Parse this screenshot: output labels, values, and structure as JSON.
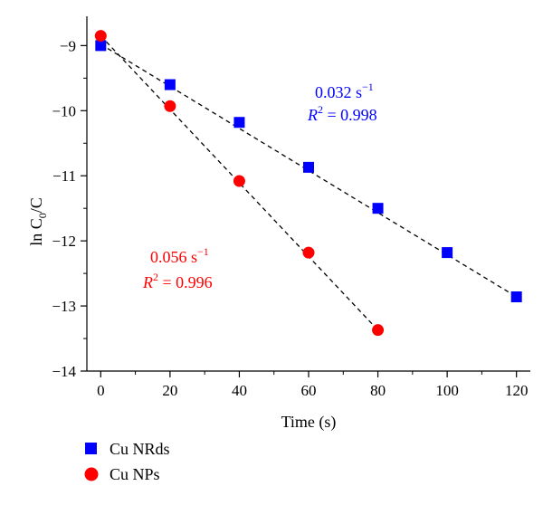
{
  "chart_data": {
    "type": "scatter",
    "xlabel": "Time (s)",
    "ylabel_parts": {
      "base": "ln C",
      "subscript": "0",
      "suffix": "/C"
    },
    "xlim": [
      -4,
      124
    ],
    "ylim": [
      -14,
      -8.55
    ],
    "xticks": [
      0,
      20,
      40,
      60,
      80,
      100,
      120
    ],
    "yticks": [
      -9,
      -10,
      -11,
      -12,
      -13,
      -14
    ],
    "grid": false,
    "legend_position": "bottom-left",
    "series": [
      {
        "name": "Cu NRds",
        "marker": "square",
        "color": "#0000ff",
        "x": [
          0,
          20,
          40,
          60,
          80,
          100,
          120
        ],
        "y": [
          -9.0,
          -9.6,
          -10.18,
          -10.87,
          -11.5,
          -12.18,
          -12.86
        ],
        "fit": {
          "x": [
            0,
            120
          ],
          "y": [
            -8.98,
            -12.86
          ]
        },
        "annotation": {
          "rate": "0.032 s",
          "rate_exp": "−1",
          "r_label": "R",
          "r_exp": "2",
          "r_value": " = 0.998"
        }
      },
      {
        "name": "Cu NPs",
        "marker": "circle",
        "color": "#ff0000",
        "x": [
          0,
          20,
          40,
          60,
          80
        ],
        "y": [
          -8.85,
          -9.93,
          -11.08,
          -12.18,
          -13.37
        ],
        "fit": {
          "x": [
            0,
            80
          ],
          "y": [
            -8.85,
            -13.37
          ]
        },
        "annotation": {
          "rate": "0.056 s",
          "rate_exp": "−1",
          "r_label": "R",
          "r_exp": "2",
          "r_value": " = 0.996"
        }
      }
    ]
  }
}
